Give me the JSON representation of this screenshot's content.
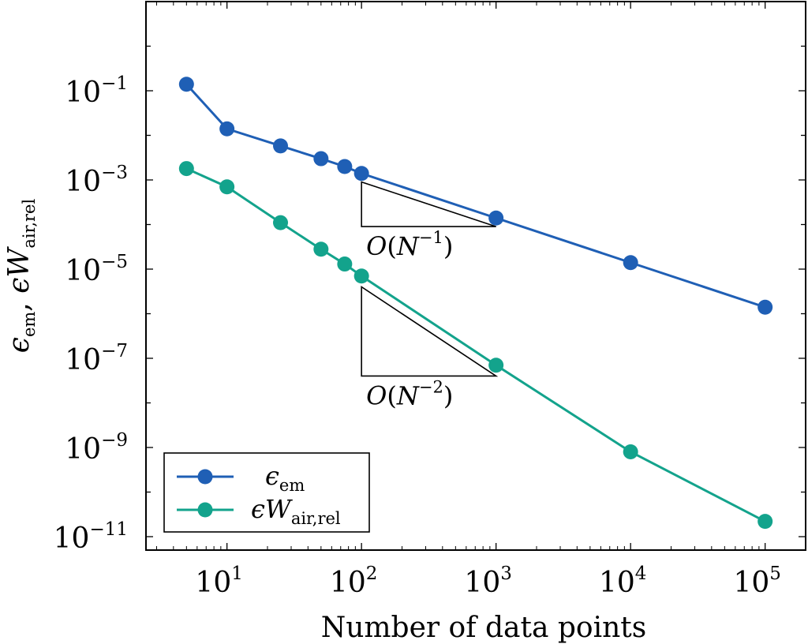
{
  "chart_data": {
    "type": "line",
    "xscale": "log",
    "yscale": "log",
    "xlim": [
      2.5,
      200000
    ],
    "ylim": [
      5e-12,
      10
    ],
    "xlabel": "Number of data points",
    "ylabel": "ϵem, ϵWair,rel",
    "x_ticks": [
      {
        "base": "10",
        "exp": "1",
        "value": 10
      },
      {
        "base": "10",
        "exp": "2",
        "value": 100
      },
      {
        "base": "10",
        "exp": "3",
        "value": 1000
      },
      {
        "base": "10",
        "exp": "4",
        "value": 10000
      },
      {
        "base": "10",
        "exp": "5",
        "value": 100000
      }
    ],
    "y_ticks": [
      {
        "base": "10",
        "exp": "−1",
        "value": 0.1
      },
      {
        "base": "10",
        "exp": "−3",
        "value": 0.001
      },
      {
        "base": "10",
        "exp": "−5",
        "value": 1e-05
      },
      {
        "base": "10",
        "exp": "−7",
        "value": 1e-07
      },
      {
        "base": "10",
        "exp": "−9",
        "value": 1e-09
      },
      {
        "base": "10",
        "exp": "−11",
        "value": 1e-11
      }
    ],
    "series": [
      {
        "name": "ϵem",
        "label_main": "ϵ",
        "label_sub": "em",
        "color": "#1f5fb5",
        "x": [
          5,
          10,
          25,
          50,
          75,
          100,
          1000,
          10000,
          100000
        ],
        "y": [
          0.14,
          0.014,
          0.0058,
          0.003,
          0.002,
          0.0014,
          0.00014,
          1.4e-05,
          1.4e-06
        ]
      },
      {
        "name": "ϵWair,rel",
        "label_main": "ϵW",
        "label_sub": "air,rel",
        "color": "#13a38c",
        "x": [
          5,
          10,
          25,
          50,
          75,
          100,
          1000,
          10000,
          100000
        ],
        "y": [
          0.0018,
          0.0007,
          0.00011,
          2.8e-05,
          1.3e-05,
          7e-06,
          7e-08,
          8e-10,
          2.2e-11
        ]
      }
    ],
    "annotations": [
      {
        "text": "O(N−1)",
        "order": "−1",
        "x_from": 100,
        "x_to": 1000,
        "y_top": 0.0009,
        "y_bottom": 9e-05
      },
      {
        "text": "O(N−2)",
        "order": "−2",
        "x_from": 100,
        "x_to": 1000,
        "y_top": 4e-06,
        "y_bottom": 4e-08
      }
    ],
    "legend": {
      "position": "bottom-left"
    },
    "grid": false
  }
}
